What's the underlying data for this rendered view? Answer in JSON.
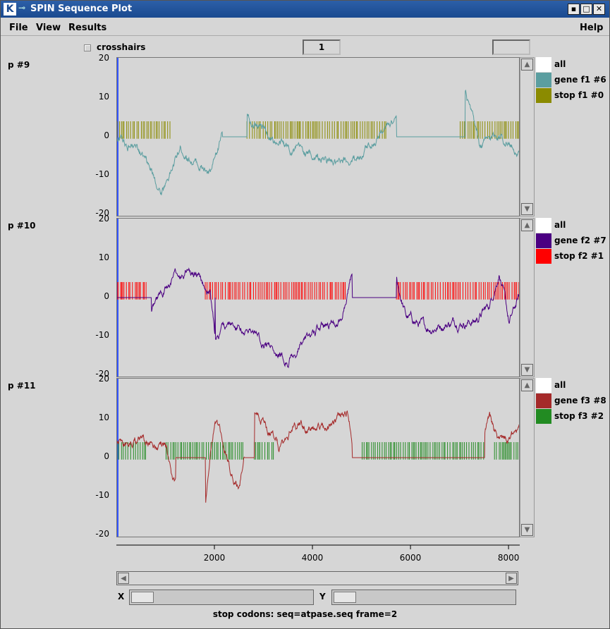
{
  "window": {
    "title": "SPIN Sequence Plot",
    "app_icon": "K",
    "controls": [
      "minimize",
      "maximize",
      "close"
    ]
  },
  "menubar": {
    "file": "File",
    "view": "View",
    "results": "Results",
    "help": "Help"
  },
  "toolbar": {
    "crosshairs_label": "crosshairs",
    "crosshairs_checked": false,
    "page_value": "1",
    "extra_value": ""
  },
  "plots": [
    {
      "label": "p #9",
      "legend": [
        {
          "label": "all",
          "color": "#ffffff"
        },
        {
          "label": "gene f1 #6",
          "color": "#5b9ea0"
        },
        {
          "label": "stop f1 #0",
          "color": "#8b8b00"
        }
      ]
    },
    {
      "label": "p #10",
      "legend": [
        {
          "label": "all",
          "color": "#ffffff"
        },
        {
          "label": "gene f2 #7",
          "color": "#4b0082"
        },
        {
          "label": "stop f2 #1",
          "color": "#ff0000"
        }
      ]
    },
    {
      "label": "p #11",
      "legend": [
        {
          "label": "all",
          "color": "#ffffff"
        },
        {
          "label": "gene f3 #8",
          "color": "#a52a2a"
        },
        {
          "label": "stop f3 #2",
          "color": "#228b22"
        }
      ]
    }
  ],
  "chart_data": {
    "type": "line",
    "ylim": [
      -20,
      20
    ],
    "xlim": [
      0,
      8200
    ],
    "y_ticks": [
      "20",
      "10",
      "0",
      "-10",
      "-20"
    ],
    "x_ticks": [
      "2000",
      "4000",
      "6000",
      "8000"
    ],
    "x_tick_values": [
      2000,
      4000,
      6000,
      8000
    ]
  },
  "bottom": {
    "x_label": "X",
    "y_label": "Y",
    "status": "stop codons: seq=atpase.seq frame=2"
  }
}
